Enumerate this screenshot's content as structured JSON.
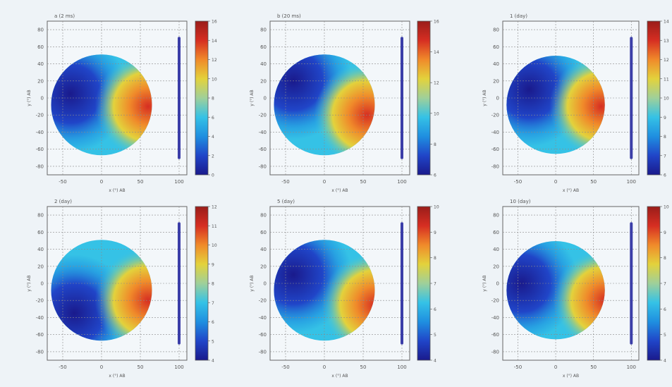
{
  "colors": {
    "background": "#eef3f7",
    "plot_background": "#f3f7fa",
    "grid": "#8a8a8a",
    "scale_bar": "#3b3ea8",
    "colormap": [
      "#1a1a8c",
      "#2045c8",
      "#1f8fe0",
      "#35c2e6",
      "#9fd09a",
      "#e3d23c",
      "#f08a2a",
      "#d62e22",
      "#9a1d1a"
    ]
  },
  "chart_data": [
    {
      "type": "heatmap",
      "title": "a (2 ms)",
      "xlabel": "x (°) AB",
      "ylabel": "y (°) AB",
      "xlim": [
        -70,
        110
      ],
      "ylim": [
        -90,
        90
      ],
      "xticks": [
        -50,
        0,
        50,
        100
      ],
      "yticks": [
        -80,
        -60,
        -40,
        -20,
        0,
        20,
        40,
        60,
        80
      ],
      "colorbar_ticks": [
        "0",
        "2",
        "4",
        "6",
        "8",
        "10",
        "12",
        "14",
        "16"
      ],
      "hotspot": {
        "x": 60,
        "y": -10,
        "level": 0.95
      },
      "coldspot": {
        "x": -40,
        "y": 5,
        "level": 0.02
      }
    },
    {
      "type": "heatmap",
      "title": "b (20 ms)",
      "xlabel": "x (°) AB",
      "ylabel": "y (°) AB",
      "xlim": [
        -70,
        110
      ],
      "ylim": [
        -90,
        90
      ],
      "xticks": [
        -50,
        0,
        50,
        100
      ],
      "yticks": [
        -80,
        -60,
        -40,
        -20,
        0,
        20,
        40,
        60,
        80
      ],
      "colorbar_ticks": [
        "6",
        "8",
        "10",
        "12",
        "14",
        "16"
      ],
      "hotspot": {
        "x": 55,
        "y": -20,
        "level": 0.95
      },
      "coldspot": {
        "x": -40,
        "y": 20,
        "level": 0.03
      }
    },
    {
      "type": "heatmap",
      "title": "1 (day)",
      "xlabel": "x (°) AB",
      "ylabel": "y (°) AB",
      "xlim": [
        -70,
        110
      ],
      "ylim": [
        -90,
        90
      ],
      "xticks": [
        -50,
        0,
        50,
        100
      ],
      "yticks": [
        -80,
        -60,
        -40,
        -20,
        0,
        20,
        40,
        60,
        80
      ],
      "colorbar_ticks": [
        "6",
        "7",
        "8",
        "9",
        "10",
        "11",
        "12",
        "13",
        "14"
      ],
      "hotspot": {
        "x": 60,
        "y": -10,
        "level": 0.9
      },
      "coldspot": {
        "x": -35,
        "y": 10,
        "level": 0.08
      }
    },
    {
      "type": "heatmap",
      "title": "2 (day)",
      "xlabel": "x (°) AB",
      "ylabel": "y (°) AB",
      "xlim": [
        -70,
        110
      ],
      "ylim": [
        -90,
        90
      ],
      "xticks": [
        -50,
        0,
        50,
        100
      ],
      "yticks": [
        -80,
        -60,
        -40,
        -20,
        0,
        20,
        40,
        60,
        80
      ],
      "colorbar_ticks": [
        "4",
        "5",
        "6",
        "7",
        "8",
        "9",
        "10",
        "11",
        "12"
      ],
      "hotspot": {
        "x": 60,
        "y": -20,
        "level": 0.95
      },
      "coldspot": {
        "x": -35,
        "y": -35,
        "level": 0.05
      }
    },
    {
      "type": "heatmap",
      "title": "5 (day)",
      "xlabel": "x (°) AB",
      "ylabel": "y (°) AB",
      "xlim": [
        -70,
        110
      ],
      "ylim": [
        -90,
        90
      ],
      "xticks": [
        -50,
        0,
        50,
        100
      ],
      "yticks": [
        -80,
        -60,
        -40,
        -20,
        0,
        20,
        40,
        60,
        80
      ],
      "colorbar_ticks": [
        "4",
        "5",
        "6",
        "7",
        "8",
        "9",
        "10"
      ],
      "hotspot": {
        "x": 65,
        "y": -25,
        "level": 0.92
      },
      "coldspot": {
        "x": -40,
        "y": 10,
        "level": 0.02
      }
    },
    {
      "type": "heatmap",
      "title": "10 (day)",
      "xlabel": "x (°) AB",
      "ylabel": "y (°) AB",
      "xlim": [
        -70,
        110
      ],
      "ylim": [
        -90,
        90
      ],
      "xticks": [
        -50,
        0,
        50,
        100
      ],
      "yticks": [
        -80,
        -60,
        -40,
        -20,
        0,
        20,
        40,
        60,
        80
      ],
      "colorbar_ticks": [
        "4",
        "5",
        "6",
        "7",
        "8",
        "9",
        "10"
      ],
      "hotspot": {
        "x": 65,
        "y": -20,
        "level": 0.95
      },
      "coldspot": {
        "x": -45,
        "y": 0,
        "level": 0.02
      }
    }
  ]
}
